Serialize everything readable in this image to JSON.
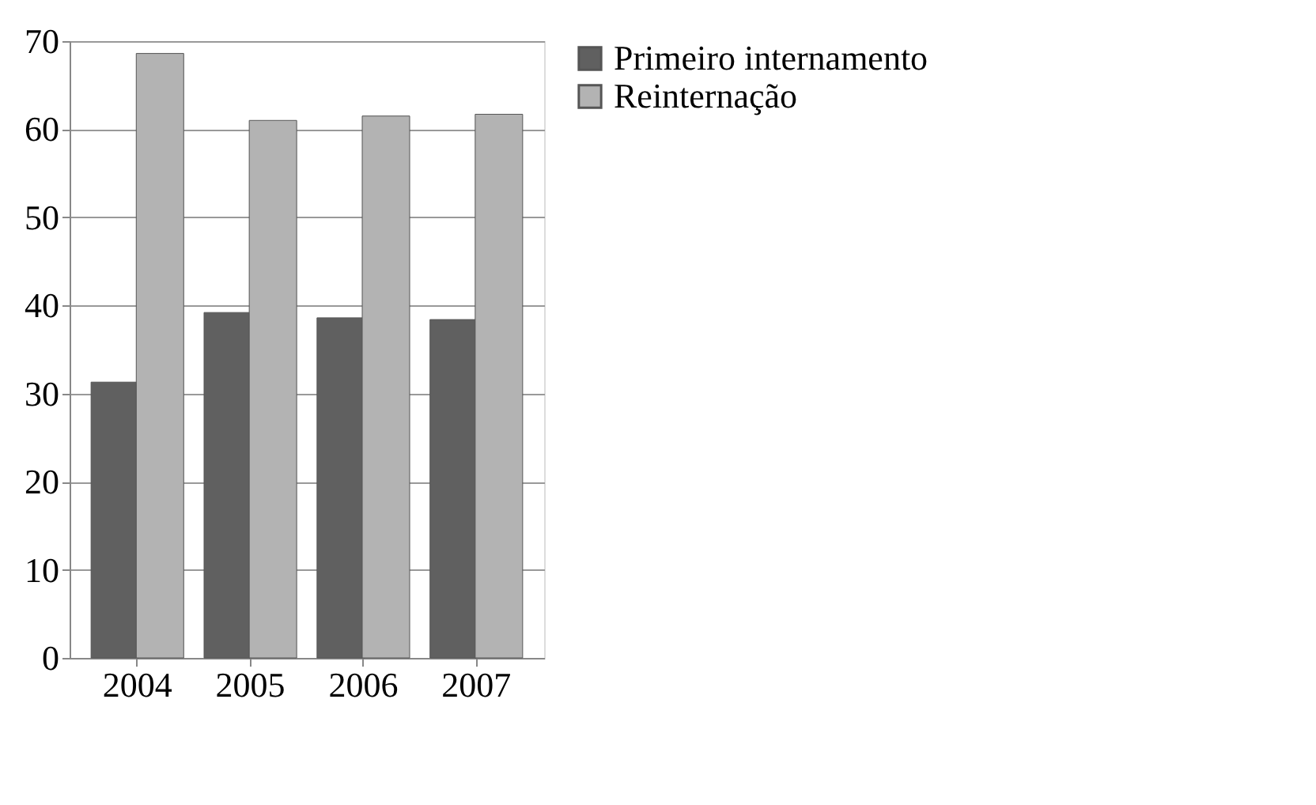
{
  "chart_data": {
    "type": "bar",
    "categories": [
      "2004",
      "2005",
      "2006",
      "2007"
    ],
    "series": [
      {
        "name": "Primeiro internamento",
        "color": "#606060",
        "values": [
          31.3,
          39.2,
          38.6,
          38.4
        ]
      },
      {
        "name": "Reinternação",
        "color": "#b3b3b3",
        "values": [
          68.6,
          61.0,
          61.5,
          61.7
        ]
      }
    ],
    "ylim": [
      0,
      70
    ],
    "yticks": [
      0,
      10,
      20,
      30,
      40,
      50,
      60,
      70
    ],
    "grid": "y",
    "legend": "right"
  }
}
